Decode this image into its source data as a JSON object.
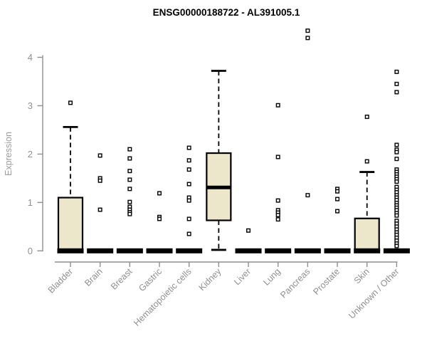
{
  "chart_data": {
    "type": "boxplot",
    "title": "ENSG00000188722 - AL391005.1",
    "ylabel": "Expression",
    "xlabel": "",
    "ylim": [
      0,
      4.7
    ],
    "yticks": [
      0,
      1,
      2,
      3,
      4
    ],
    "grid": false,
    "legend": "none",
    "categories": [
      "Bladder",
      "Brain",
      "Breast",
      "Gastric",
      "Hematopoietic cells",
      "Kidney",
      "Liver",
      "Lung",
      "Pancreas",
      "Prostate",
      "Skin",
      "Unknown / Other"
    ],
    "series": [
      {
        "name": "Bladder",
        "q1": 0,
        "median": 0,
        "q3": 1.1,
        "whisker_low": 0,
        "whisker_high": 2.56,
        "outliers": [
          3.06
        ]
      },
      {
        "name": "Brain",
        "q1": 0,
        "median": 0,
        "q3": 0,
        "whisker_low": 0,
        "whisker_high": 0,
        "outliers": [
          1.97,
          1.5,
          1.45,
          0.85
        ]
      },
      {
        "name": "Breast",
        "q1": 0,
        "median": 0,
        "q3": 0,
        "whisker_low": 0,
        "whisker_high": 0,
        "outliers": [
          2.1,
          1.91,
          1.65,
          1.47,
          1.28,
          1.01,
          0.91,
          0.85,
          0.8,
          0.76
        ]
      },
      {
        "name": "Gastric",
        "q1": 0,
        "median": 0,
        "q3": 0,
        "whisker_low": 0,
        "whisker_high": 0,
        "outliers": [
          1.19,
          0.7,
          0.66
        ]
      },
      {
        "name": "Hematopoietic cells",
        "q1": 0,
        "median": 0,
        "q3": 0,
        "whisker_low": 0,
        "whisker_high": 0,
        "outliers": [
          2.13,
          1.87,
          1.68,
          1.38,
          1.1,
          1.04,
          0.66,
          0.35
        ]
      },
      {
        "name": "Kidney",
        "q1": 0.63,
        "median": 1.31,
        "q3": 2.02,
        "whisker_low": 0.02,
        "whisker_high": 3.72,
        "outliers": []
      },
      {
        "name": "Liver",
        "q1": 0,
        "median": 0,
        "q3": 0,
        "whisker_low": 0,
        "whisker_high": 0,
        "outliers": [
          0.42
        ]
      },
      {
        "name": "Lung",
        "q1": 0,
        "median": 0,
        "q3": 0,
        "whisker_low": 0,
        "whisker_high": 0,
        "outliers": [
          3.01,
          1.94,
          1.04,
          0.84,
          0.79,
          0.74,
          0.65
        ]
      },
      {
        "name": "Pancreas",
        "q1": 0,
        "median": 0,
        "q3": 0,
        "whisker_low": 0,
        "whisker_high": 0,
        "outliers": [
          4.55,
          4.4,
          1.15
        ]
      },
      {
        "name": "Prostate",
        "q1": 0,
        "median": 0,
        "q3": 0,
        "whisker_low": 0,
        "whisker_high": 0,
        "outliers": [
          1.28,
          1.23,
          1.07,
          0.82
        ]
      },
      {
        "name": "Skin",
        "q1": 0,
        "median": 0,
        "q3": 0.67,
        "whisker_low": 0,
        "whisker_high": 1.63,
        "outliers": [
          2.77,
          1.85
        ]
      },
      {
        "name": "Unknown / Other",
        "q1": 0,
        "median": 0,
        "q3": 0,
        "whisker_low": 0,
        "whisker_high": 0,
        "outliers": [
          3.7,
          3.45,
          3.28,
          2.19,
          2.09,
          2.04,
          1.9,
          1.68,
          1.63,
          1.58,
          1.53,
          1.48,
          1.43,
          1.32,
          1.26,
          1.21,
          1.15,
          1.1,
          1.05,
          0.99,
          0.94,
          0.89,
          0.84,
          0.78,
          0.73,
          0.62,
          0.56,
          0.5,
          0.44,
          0.38,
          0.33,
          0.27,
          0.21,
          0.15,
          0.1
        ]
      }
    ],
    "style": {
      "box_fill": "#ECE7CB",
      "box_border": "#000000",
      "median_color": "#000000",
      "whisker_color": "#000000",
      "outlier_marker": "open-square",
      "axis_color": "#8f8f8f",
      "tick_label_color": "#909090",
      "category_label_color": "#8f8f8f",
      "title_color": "#000000",
      "background": "#ffffff"
    }
  }
}
